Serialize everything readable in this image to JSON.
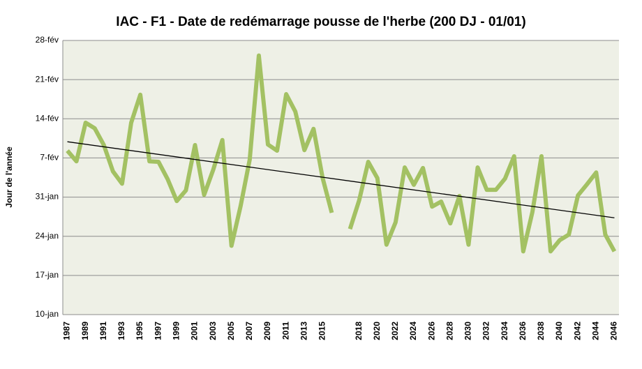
{
  "chart_data": {
    "type": "line",
    "title": "IAC - F1 - Date de redémarrage pousse de l'herbe (200 DJ - 01/01)",
    "y_label": "Jour de l'année",
    "categories": [
      "1987",
      null,
      "1989",
      null,
      "1991",
      null,
      "1993",
      null,
      "1995",
      null,
      "1997",
      null,
      "1999",
      null,
      "2001",
      null,
      "2003",
      null,
      "2005",
      null,
      "2007",
      null,
      "2009",
      null,
      "2011",
      null,
      "2013",
      null,
      "2015",
      null,
      null,
      null,
      "2018",
      null,
      "2020",
      null,
      "2022",
      null,
      "2024",
      null,
      "2026",
      null,
      "2028",
      null,
      "2030",
      null,
      "2032",
      null,
      "2034",
      null,
      "2036",
      null,
      "2038",
      null,
      "2040",
      null,
      "2042",
      null,
      "2044",
      null,
      "2046"
    ],
    "series": [
      {
        "color": "#a3c163",
        "values": [
          39.3,
          37.4,
          44.3,
          43.3,
          40.3,
          35.6,
          33.4,
          44.3,
          49.3,
          37.4,
          37.3,
          34.2,
          30.3,
          32.2,
          40.3,
          31.4,
          35.9,
          41.2,
          22.3,
          29.4,
          37.7,
          56.3,
          40.4,
          39.3,
          49.4,
          46.3,
          39.4,
          43.2,
          34.4,
          28.2,
          null,
          25.3,
          30.4,
          37.3,
          34.4,
          22.5,
          26.5,
          36.3,
          33.2,
          36.2,
          29.3,
          30.2,
          26.3,
          31.2,
          22.5,
          36.3,
          32.3,
          32.3,
          34.3,
          38.3,
          21.3,
          28.3,
          38.3,
          21.3,
          23.3,
          24.3,
          31.3,
          33.3,
          35.4,
          24.3,
          21.3
        ]
      }
    ],
    "trend": {
      "color": "#000000",
      "values": [
        40.9,
        27.3
      ]
    },
    "ylim": [
      10,
      59
    ],
    "yticks": [
      {
        "value": 10,
        "label": "10-jan"
      },
      {
        "value": 17,
        "label": "17-jan"
      },
      {
        "value": 24,
        "label": "24-jan"
      },
      {
        "value": 31,
        "label": "31-jan"
      },
      {
        "value": 38,
        "label": "7-fév"
      },
      {
        "value": 45,
        "label": "14-fév"
      },
      {
        "value": 52,
        "label": "21-fév"
      },
      {
        "value": 59,
        "label": "28-fév"
      }
    ],
    "grid": true,
    "plot_background": "#eef0e6"
  }
}
